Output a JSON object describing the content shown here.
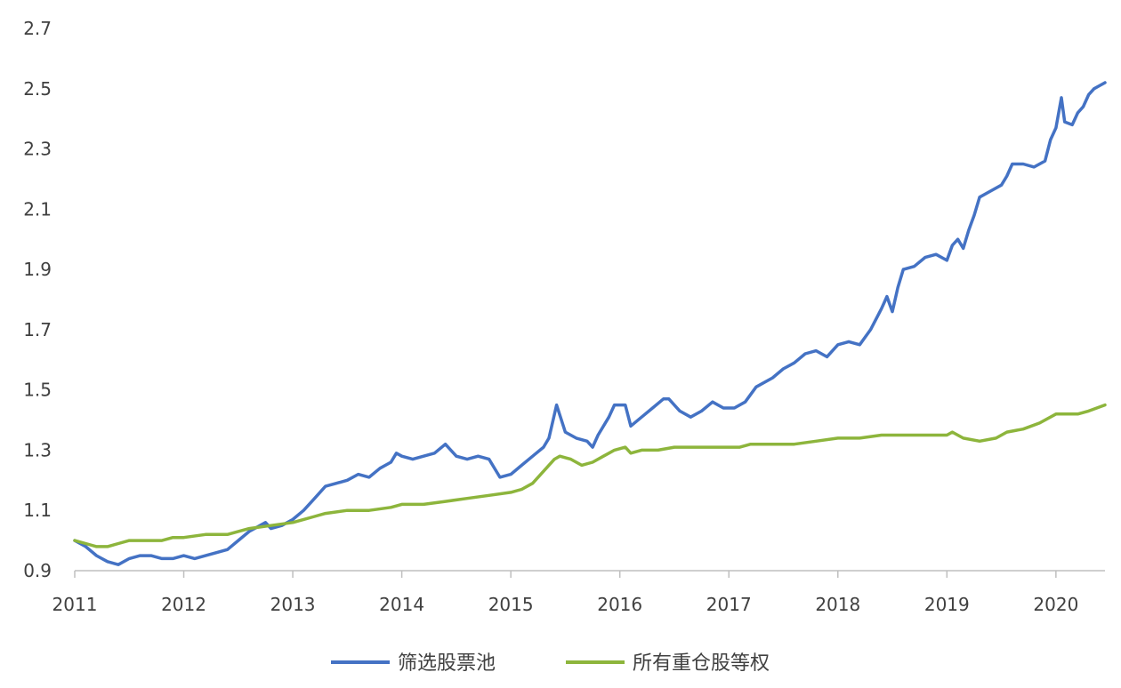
{
  "chart_data": {
    "type": "line",
    "title": "",
    "xlabel": "",
    "ylabel": "",
    "xlim": [
      2011,
      2020.45
    ],
    "ylim": [
      0.9,
      2.7
    ],
    "x_ticks": [
      "2011",
      "2012",
      "2013",
      "2014",
      "2015",
      "2016",
      "2017",
      "2018",
      "2019",
      "2020"
    ],
    "y_ticks": [
      "0.9",
      "1.1",
      "1.3",
      "1.5",
      "1.7",
      "1.9",
      "2.1",
      "2.3",
      "2.5",
      "2.7"
    ],
    "grid": false,
    "legend_position": "bottom",
    "series": [
      {
        "name": "筛选股票池",
        "color": "#4472C4",
        "points": [
          [
            2011.0,
            1.0
          ],
          [
            2011.1,
            0.98
          ],
          [
            2011.2,
            0.95
          ],
          [
            2011.3,
            0.93
          ],
          [
            2011.4,
            0.92
          ],
          [
            2011.5,
            0.94
          ],
          [
            2011.6,
            0.95
          ],
          [
            2011.7,
            0.95
          ],
          [
            2011.8,
            0.94
          ],
          [
            2011.9,
            0.94
          ],
          [
            2012.0,
            0.95
          ],
          [
            2012.1,
            0.94
          ],
          [
            2012.2,
            0.95
          ],
          [
            2012.3,
            0.96
          ],
          [
            2012.4,
            0.97
          ],
          [
            2012.5,
            1.0
          ],
          [
            2012.6,
            1.03
          ],
          [
            2012.7,
            1.05
          ],
          [
            2012.75,
            1.06
          ],
          [
            2012.8,
            1.04
          ],
          [
            2012.9,
            1.05
          ],
          [
            2013.0,
            1.07
          ],
          [
            2013.1,
            1.1
          ],
          [
            2013.2,
            1.14
          ],
          [
            2013.3,
            1.18
          ],
          [
            2013.4,
            1.19
          ],
          [
            2013.5,
            1.2
          ],
          [
            2013.6,
            1.22
          ],
          [
            2013.7,
            1.21
          ],
          [
            2013.8,
            1.24
          ],
          [
            2013.9,
            1.26
          ],
          [
            2013.95,
            1.29
          ],
          [
            2014.0,
            1.28
          ],
          [
            2014.1,
            1.27
          ],
          [
            2014.2,
            1.28
          ],
          [
            2014.3,
            1.29
          ],
          [
            2014.4,
            1.32
          ],
          [
            2014.5,
            1.28
          ],
          [
            2014.6,
            1.27
          ],
          [
            2014.7,
            1.28
          ],
          [
            2014.8,
            1.27
          ],
          [
            2014.9,
            1.21
          ],
          [
            2015.0,
            1.22
          ],
          [
            2015.1,
            1.25
          ],
          [
            2015.2,
            1.28
          ],
          [
            2015.3,
            1.31
          ],
          [
            2015.35,
            1.34
          ],
          [
            2015.42,
            1.45
          ],
          [
            2015.5,
            1.36
          ],
          [
            2015.6,
            1.34
          ],
          [
            2015.7,
            1.33
          ],
          [
            2015.75,
            1.31
          ],
          [
            2015.8,
            1.35
          ],
          [
            2015.9,
            1.41
          ],
          [
            2015.95,
            1.45
          ],
          [
            2016.05,
            1.45
          ],
          [
            2016.1,
            1.38
          ],
          [
            2016.2,
            1.41
          ],
          [
            2016.3,
            1.44
          ],
          [
            2016.4,
            1.47
          ],
          [
            2016.45,
            1.47
          ],
          [
            2016.55,
            1.43
          ],
          [
            2016.65,
            1.41
          ],
          [
            2016.75,
            1.43
          ],
          [
            2016.85,
            1.46
          ],
          [
            2016.95,
            1.44
          ],
          [
            2017.05,
            1.44
          ],
          [
            2017.15,
            1.46
          ],
          [
            2017.25,
            1.51
          ],
          [
            2017.4,
            1.54
          ],
          [
            2017.5,
            1.57
          ],
          [
            2017.6,
            1.59
          ],
          [
            2017.7,
            1.62
          ],
          [
            2017.8,
            1.63
          ],
          [
            2017.9,
            1.61
          ],
          [
            2018.0,
            1.65
          ],
          [
            2018.1,
            1.66
          ],
          [
            2018.2,
            1.65
          ],
          [
            2018.3,
            1.7
          ],
          [
            2018.4,
            1.77
          ],
          [
            2018.45,
            1.81
          ],
          [
            2018.5,
            1.76
          ],
          [
            2018.55,
            1.84
          ],
          [
            2018.6,
            1.9
          ],
          [
            2018.7,
            1.91
          ],
          [
            2018.8,
            1.94
          ],
          [
            2018.9,
            1.95
          ],
          [
            2019.0,
            1.93
          ],
          [
            2019.05,
            1.98
          ],
          [
            2019.1,
            2.0
          ],
          [
            2019.15,
            1.97
          ],
          [
            2019.2,
            2.03
          ],
          [
            2019.25,
            2.08
          ],
          [
            2019.3,
            2.14
          ],
          [
            2019.4,
            2.16
          ],
          [
            2019.5,
            2.18
          ],
          [
            2019.55,
            2.21
          ],
          [
            2019.6,
            2.25
          ],
          [
            2019.7,
            2.25
          ],
          [
            2019.8,
            2.24
          ],
          [
            2019.9,
            2.26
          ],
          [
            2019.95,
            2.33
          ],
          [
            2020.0,
            2.37
          ],
          [
            2020.05,
            2.47
          ],
          [
            2020.08,
            2.39
          ],
          [
            2020.15,
            2.38
          ],
          [
            2020.2,
            2.42
          ],
          [
            2020.25,
            2.44
          ],
          [
            2020.3,
            2.48
          ],
          [
            2020.35,
            2.5
          ],
          [
            2020.4,
            2.51
          ],
          [
            2020.45,
            2.52
          ]
        ]
      },
      {
        "name": "所有重仓股等权",
        "color": "#8DB53C",
        "points": [
          [
            2011.0,
            1.0
          ],
          [
            2011.1,
            0.99
          ],
          [
            2011.2,
            0.98
          ],
          [
            2011.3,
            0.98
          ],
          [
            2011.4,
            0.99
          ],
          [
            2011.5,
            1.0
          ],
          [
            2011.6,
            1.0
          ],
          [
            2011.7,
            1.0
          ],
          [
            2011.8,
            1.0
          ],
          [
            2011.9,
            1.01
          ],
          [
            2012.0,
            1.01
          ],
          [
            2012.2,
            1.02
          ],
          [
            2012.4,
            1.02
          ],
          [
            2012.5,
            1.03
          ],
          [
            2012.6,
            1.04
          ],
          [
            2012.8,
            1.05
          ],
          [
            2013.0,
            1.06
          ],
          [
            2013.1,
            1.07
          ],
          [
            2013.2,
            1.08
          ],
          [
            2013.3,
            1.09
          ],
          [
            2013.5,
            1.1
          ],
          [
            2013.7,
            1.1
          ],
          [
            2013.9,
            1.11
          ],
          [
            2014.0,
            1.12
          ],
          [
            2014.2,
            1.12
          ],
          [
            2014.4,
            1.13
          ],
          [
            2014.6,
            1.14
          ],
          [
            2014.8,
            1.15
          ],
          [
            2015.0,
            1.16
          ],
          [
            2015.1,
            1.17
          ],
          [
            2015.2,
            1.19
          ],
          [
            2015.3,
            1.23
          ],
          [
            2015.4,
            1.27
          ],
          [
            2015.45,
            1.28
          ],
          [
            2015.55,
            1.27
          ],
          [
            2015.65,
            1.25
          ],
          [
            2015.75,
            1.26
          ],
          [
            2015.85,
            1.28
          ],
          [
            2015.95,
            1.3
          ],
          [
            2016.05,
            1.31
          ],
          [
            2016.1,
            1.29
          ],
          [
            2016.2,
            1.3
          ],
          [
            2016.35,
            1.3
          ],
          [
            2016.5,
            1.31
          ],
          [
            2016.7,
            1.31
          ],
          [
            2016.85,
            1.31
          ],
          [
            2017.0,
            1.31
          ],
          [
            2017.1,
            1.31
          ],
          [
            2017.2,
            1.32
          ],
          [
            2017.35,
            1.32
          ],
          [
            2017.5,
            1.32
          ],
          [
            2017.6,
            1.32
          ],
          [
            2017.8,
            1.33
          ],
          [
            2018.0,
            1.34
          ],
          [
            2018.2,
            1.34
          ],
          [
            2018.4,
            1.35
          ],
          [
            2018.6,
            1.35
          ],
          [
            2018.8,
            1.35
          ],
          [
            2019.0,
            1.35
          ],
          [
            2019.05,
            1.36
          ],
          [
            2019.15,
            1.34
          ],
          [
            2019.3,
            1.33
          ],
          [
            2019.45,
            1.34
          ],
          [
            2019.55,
            1.36
          ],
          [
            2019.7,
            1.37
          ],
          [
            2019.85,
            1.39
          ],
          [
            2020.0,
            1.42
          ],
          [
            2020.1,
            1.42
          ],
          [
            2020.2,
            1.42
          ],
          [
            2020.3,
            1.43
          ],
          [
            2020.45,
            1.45
          ]
        ]
      }
    ]
  }
}
